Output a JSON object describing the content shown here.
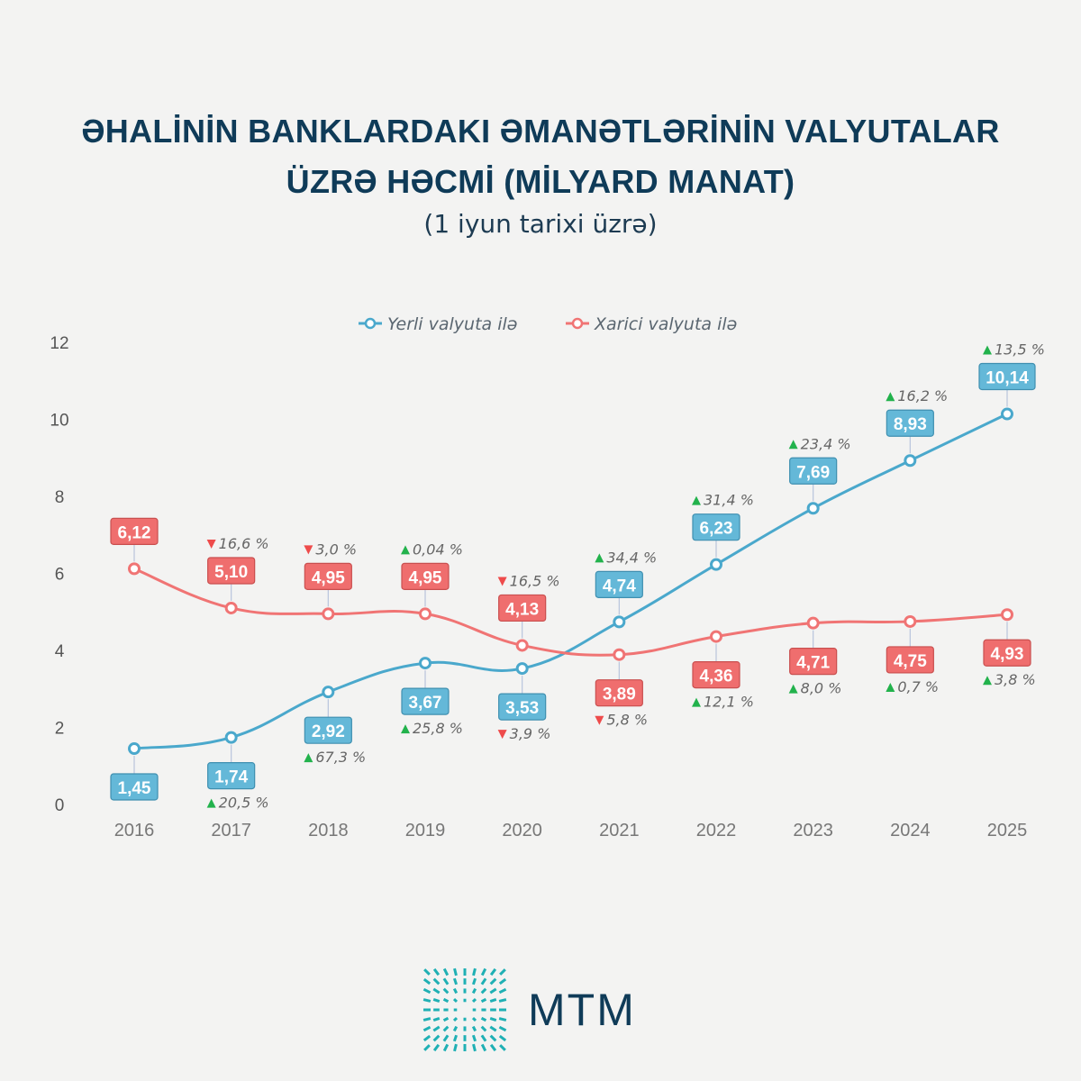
{
  "title_line1": "ƏHALİNİN BANKLARDAKI ƏMANƏTLƏRİNİN VALYUTALAR",
  "title_line2": "ÜZRƏ HƏCMİ (MİLYARD MANAT)",
  "subtitle": "(1 iyun tarixi üzrə)",
  "logo_text": "MTM",
  "chart_data": {
    "type": "line",
    "title": "ƏHALİNİN BANKLARDAKI ƏMANƏTLƏRİNİN VALYUTALAR ÜZRƏ HƏCMİ (MİLYARD MANAT)",
    "x": [
      "2016",
      "2017",
      "2018",
      "2019",
      "2020",
      "2021",
      "2022",
      "2023",
      "2024",
      "2025"
    ],
    "ylim": [
      0,
      12
    ],
    "yticks": [
      0,
      2,
      4,
      6,
      8,
      10,
      12
    ],
    "legend_position": "top-center",
    "series": [
      {
        "name": "Yerli valyuta ilə",
        "color": "#4aa8cc",
        "box_color": "#64b8d8",
        "values": [
          1.45,
          1.74,
          2.92,
          3.67,
          3.53,
          4.74,
          6.23,
          7.69,
          8.93,
          10.14
        ],
        "labels": [
          "1,45",
          "1,74",
          "2,92",
          "3,67",
          "3,53",
          "4,74",
          "6,23",
          "7,69",
          "8,93",
          "10,14"
        ],
        "changes": [
          "",
          "20,5 %",
          "67,3 %",
          "25,8 %",
          "3,9 %",
          "34,4 %",
          "31,4 %",
          "23,4 %",
          "16,2 %",
          "13,5 %"
        ],
        "directions": [
          "",
          "up",
          "up",
          "up",
          "down",
          "up",
          "up",
          "up",
          "up",
          "up"
        ]
      },
      {
        "name": "Xarici valyuta ilə",
        "color": "#f07474",
        "box_color": "#ef6e6e",
        "values": [
          6.12,
          5.1,
          4.95,
          4.95,
          4.13,
          3.89,
          4.36,
          4.71,
          4.75,
          4.93
        ],
        "labels": [
          "6,12",
          "5,10",
          "4,95",
          "4,95",
          "4,13",
          "3,89",
          "4,36",
          "4,71",
          "4,75",
          "4,93"
        ],
        "changes": [
          "",
          "16,6 %",
          "3,0 %",
          "0,04 %",
          "16,5 %",
          "5,8 %",
          "12,1 %",
          "8,0 %",
          "0,7 %",
          "3,8 %"
        ],
        "directions": [
          "",
          "down",
          "down",
          "up",
          "down",
          "down",
          "up",
          "up",
          "up",
          "up"
        ]
      }
    ],
    "up_color": "#22b24c",
    "down_color": "#ee4b4b"
  }
}
